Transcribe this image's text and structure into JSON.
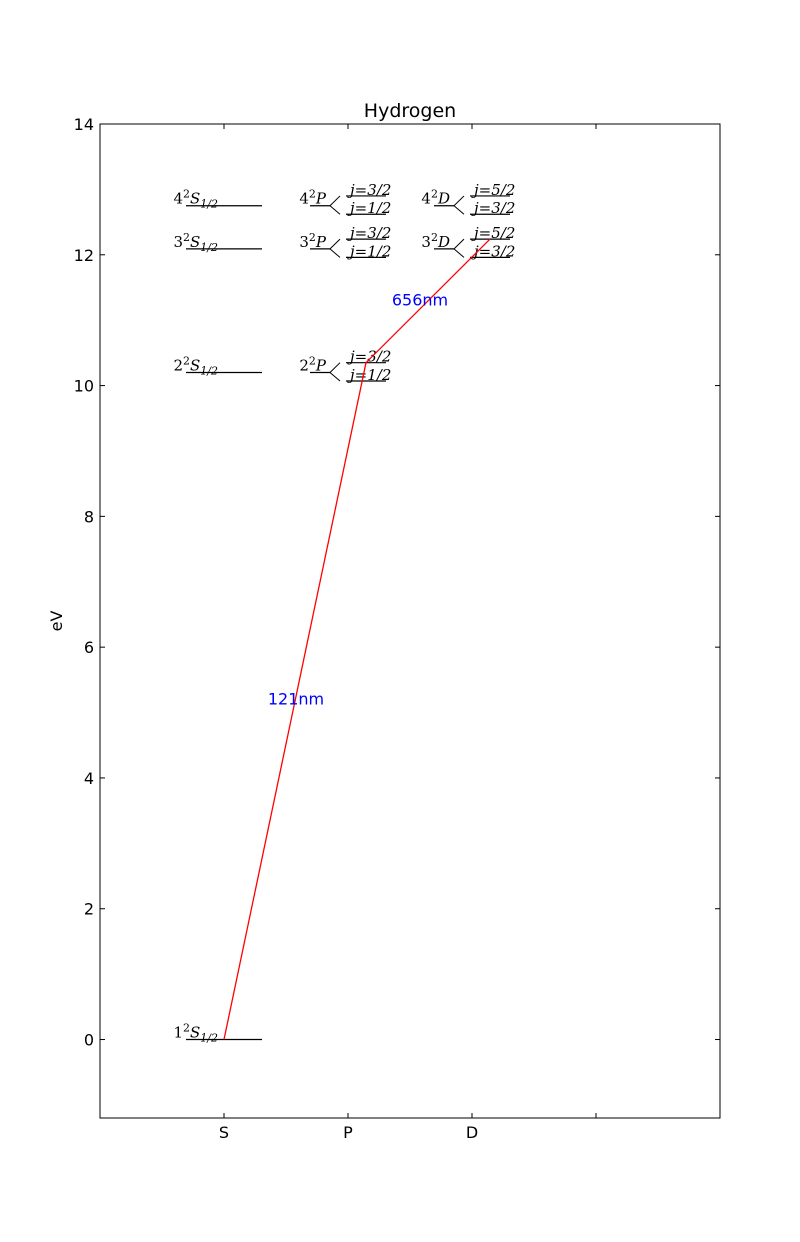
{
  "chart_data": {
    "type": "line",
    "title": "Hydrogen",
    "ylabel": "eV",
    "xlabel": "",
    "ylim": [
      -1.2,
      14
    ],
    "yticks": [
      0,
      2,
      4,
      6,
      8,
      10,
      12,
      14
    ],
    "grid": false,
    "categories": [
      "S",
      "P",
      "D"
    ],
    "colors": {
      "level": "#000000",
      "transition": "#ff0000",
      "wavelength_label": "#0000ff"
    },
    "levels": [
      {
        "n": 1,
        "orbital": "S",
        "energy": 0.0,
        "label": {
          "n": "1",
          "mult": "2",
          "L": "S",
          "j": "1/2"
        }
      },
      {
        "n": 2,
        "orbital": "S",
        "energy": 10.2,
        "label": {
          "n": "2",
          "mult": "2",
          "L": "S",
          "j": "1/2"
        }
      },
      {
        "n": 3,
        "orbital": "S",
        "energy": 12.09,
        "label": {
          "n": "3",
          "mult": "2",
          "L": "S",
          "j": "1/2"
        }
      },
      {
        "n": 4,
        "orbital": "S",
        "energy": 12.75,
        "label": {
          "n": "4",
          "mult": "2",
          "L": "S",
          "j": "1/2"
        }
      },
      {
        "n": 2,
        "orbital": "P",
        "energy": 10.2,
        "label": {
          "n": "2",
          "mult": "2",
          "L": "P"
        },
        "split": [
          {
            "j": "j=3/2",
            "energy": 10.35
          },
          {
            "j": "j=1/2",
            "energy": 10.07
          }
        ]
      },
      {
        "n": 3,
        "orbital": "P",
        "energy": 12.09,
        "label": {
          "n": "3",
          "mult": "2",
          "L": "P"
        },
        "split": [
          {
            "j": "j=3/2",
            "energy": 12.24
          },
          {
            "j": "j=1/2",
            "energy": 11.96
          }
        ]
      },
      {
        "n": 4,
        "orbital": "P",
        "energy": 12.75,
        "label": {
          "n": "4",
          "mult": "2",
          "L": "P"
        },
        "split": [
          {
            "j": "j=3/2",
            "energy": 12.9
          },
          {
            "j": "j=1/2",
            "energy": 12.62
          }
        ]
      },
      {
        "n": 3,
        "orbital": "D",
        "energy": 12.09,
        "label": {
          "n": "3",
          "mult": "2",
          "L": "D"
        },
        "split": [
          {
            "j": "j=5/2",
            "energy": 12.24
          },
          {
            "j": "j=3/2",
            "energy": 11.96
          }
        ]
      },
      {
        "n": 4,
        "orbital": "D",
        "energy": 12.75,
        "label": {
          "n": "4",
          "mult": "2",
          "L": "D"
        },
        "split": [
          {
            "j": "j=5/2",
            "energy": 12.9
          },
          {
            "j": "j=3/2",
            "energy": 12.62
          }
        ]
      }
    ],
    "transitions": [
      {
        "from": {
          "orbital": "S",
          "n": 1,
          "energy": 0.0
        },
        "to": {
          "orbital": "P",
          "n": 2,
          "j": "j=3/2",
          "energy": 10.35
        },
        "label": "121nm",
        "label_at": {
          "x": "S-P",
          "y": 5.2
        }
      },
      {
        "from": {
          "orbital": "P",
          "n": 2,
          "j": "j=3/2",
          "energy": 10.35
        },
        "to": {
          "orbital": "D",
          "n": 3,
          "j": "j=5/2",
          "energy": 12.24
        },
        "label": "656nm",
        "label_at": {
          "x": "P-D",
          "y": 11.3
        }
      }
    ]
  }
}
